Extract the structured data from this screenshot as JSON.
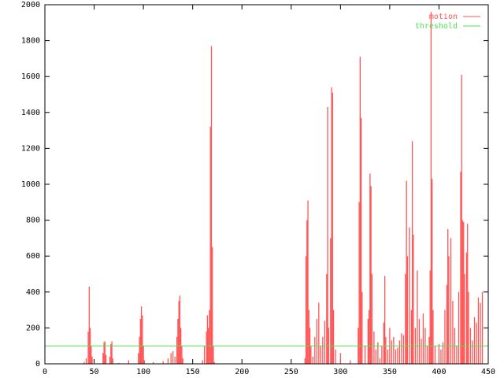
{
  "chart_data": {
    "type": "impulses",
    "series": [
      {
        "name": "motion",
        "color": "#ff5555",
        "style": "impulses",
        "x": [
          40,
          42,
          44,
          45,
          46,
          47,
          48,
          50,
          59,
          60,
          61,
          62,
          66,
          67,
          68,
          69,
          75,
          85,
          95,
          96,
          97,
          98,
          99,
          100,
          101,
          110,
          120,
          125,
          128,
          130,
          132,
          134,
          135,
          136,
          137,
          138,
          139,
          140,
          160,
          162,
          164,
          165,
          166,
          167,
          168,
          169,
          170,
          171,
          172,
          264,
          265,
          266,
          267,
          268,
          269,
          270,
          272,
          274,
          276,
          278,
          280,
          282,
          284,
          286,
          287,
          288,
          290,
          291,
          292,
          293,
          295,
          300,
          310,
          318,
          319,
          320,
          321,
          322,
          325,
          328,
          329,
          330,
          331,
          332,
          334,
          336,
          338,
          340,
          342,
          344,
          345,
          346,
          348,
          350,
          352,
          354,
          356,
          358,
          360,
          362,
          364,
          366,
          367,
          368,
          370,
          372,
          373,
          374,
          376,
          378,
          380,
          382,
          384,
          386,
          388,
          390,
          391,
          392,
          393,
          394,
          396,
          400,
          402,
          404,
          406,
          408,
          409,
          410,
          412,
          414,
          416,
          418,
          420,
          422,
          423,
          424,
          425,
          426,
          428,
          429,
          430,
          432,
          434,
          436,
          438,
          440,
          442,
          444
        ],
        "values": [
          10,
          30,
          180,
          430,
          200,
          100,
          40,
          5,
          60,
          120,
          125,
          50,
          40,
          110,
          125,
          30,
          5,
          20,
          60,
          150,
          250,
          320,
          270,
          100,
          20,
          10,
          15,
          30,
          60,
          70,
          40,
          150,
          250,
          350,
          380,
          200,
          100,
          30,
          20,
          100,
          180,
          270,
          200,
          300,
          1320,
          1770,
          650,
          100,
          10,
          30,
          600,
          800,
          910,
          300,
          200,
          100,
          40,
          150,
          250,
          340,
          100,
          150,
          240,
          500,
          1430,
          200,
          700,
          1540,
          1510,
          300,
          80,
          60,
          20,
          200,
          900,
          1710,
          1370,
          400,
          100,
          250,
          300,
          1060,
          990,
          500,
          180,
          80,
          120,
          30,
          100,
          230,
          490,
          150,
          80,
          200,
          130,
          150,
          80,
          90,
          130,
          170,
          160,
          500,
          1020,
          600,
          760,
          300,
          1240,
          720,
          200,
          520,
          250,
          140,
          280,
          200,
          100,
          150,
          520,
          1960,
          1030,
          300,
          100,
          110,
          80,
          120,
          300,
          440,
          750,
          600,
          700,
          350,
          200,
          100,
          400,
          1070,
          1610,
          800,
          790,
          500,
          620,
          780,
          400,
          200,
          130,
          260,
          230,
          370,
          340,
          400
        ]
      },
      {
        "name": "threshold",
        "color": "#55dd55",
        "style": "line",
        "x": [
          0,
          450
        ],
        "values": [
          100,
          100
        ]
      }
    ],
    "xlim": [
      0,
      450
    ],
    "xticks": [
      0,
      50,
      100,
      150,
      200,
      250,
      300,
      350,
      400,
      450
    ],
    "ylim": [
      0,
      2000
    ],
    "yticks": [
      0,
      200,
      400,
      600,
      800,
      1000,
      1200,
      1400,
      1600,
      1800,
      2000
    ],
    "legend": "top-right"
  }
}
